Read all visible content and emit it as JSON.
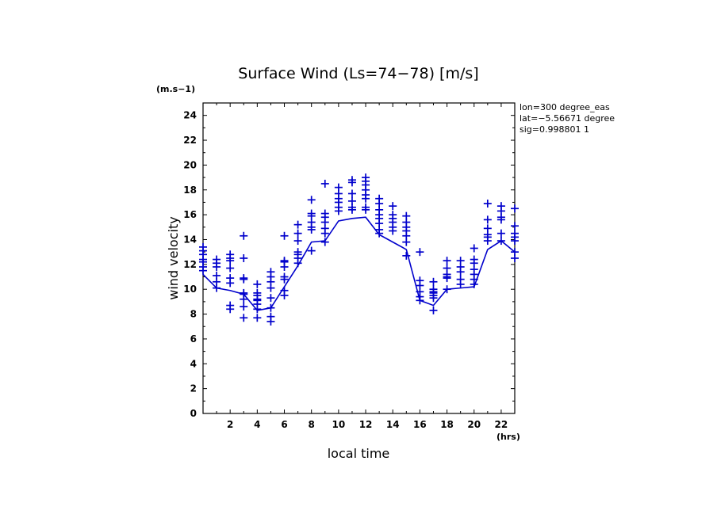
{
  "chart_data": {
    "type": "scatter",
    "title": "Surface Wind  (Ls=74−78) [m/s]",
    "y_unit_label": "(m.s−1)",
    "x_unit_label": "(hrs)",
    "xlabel": "local time",
    "ylabel": "wind velocity",
    "xlim": [
      0,
      23
    ],
    "ylim": [
      0,
      25
    ],
    "x_ticks": [
      2,
      4,
      6,
      8,
      10,
      12,
      14,
      16,
      18,
      20,
      22
    ],
    "y_ticks": [
      0,
      2,
      4,
      6,
      8,
      10,
      12,
      14,
      16,
      18,
      20,
      22,
      24
    ],
    "info_lines": [
      "lon=300 degree_eas",
      "lat=−5.56671 degree",
      "sig=0.998801 1"
    ],
    "color": "#0000cc",
    "series": [
      {
        "kind": "line",
        "x": [
          0,
          1,
          2,
          3,
          4,
          5,
          6,
          7,
          8,
          9,
          10,
          11,
          12,
          13,
          14,
          15,
          16,
          17,
          18,
          19,
          20,
          21,
          22,
          23
        ],
        "y": [
          11.2,
          10.1,
          9.9,
          9.6,
          8.3,
          8.5,
          10.2,
          11.9,
          13.8,
          13.9,
          15.5,
          15.7,
          15.8,
          14.4,
          13.8,
          13.2,
          9.1,
          8.7,
          10.0,
          10.1,
          10.2,
          13.2,
          13.9,
          13.0
        ]
      },
      {
        "kind": "points",
        "points": [
          [
            0,
            11.5
          ],
          [
            0,
            11.8
          ],
          [
            0,
            12.2
          ],
          [
            0,
            12.4
          ],
          [
            0,
            12.8
          ],
          [
            0,
            13.1
          ],
          [
            0,
            13.4
          ],
          [
            1,
            10.1
          ],
          [
            1,
            10.6
          ],
          [
            1,
            11.1
          ],
          [
            1,
            11.8
          ],
          [
            1,
            12.1
          ],
          [
            1,
            12.4
          ],
          [
            2,
            8.4
          ],
          [
            2,
            8.7
          ],
          [
            2,
            10.5
          ],
          [
            2,
            10.9
          ],
          [
            2,
            11.7
          ],
          [
            2,
            12.3
          ],
          [
            2,
            12.5
          ],
          [
            2,
            12.8
          ],
          [
            3,
            7.7
          ],
          [
            3,
            8.6
          ],
          [
            3,
            9.2
          ],
          [
            3,
            9.6
          ],
          [
            3,
            9.7
          ],
          [
            3,
            10.8
          ],
          [
            3,
            10.9
          ],
          [
            3,
            12.5
          ],
          [
            3,
            14.3
          ],
          [
            4,
            7.7
          ],
          [
            4,
            8.4
          ],
          [
            4,
            8.8
          ],
          [
            4,
            9.1
          ],
          [
            4,
            9.2
          ],
          [
            4,
            9.5
          ],
          [
            4,
            9.7
          ],
          [
            4,
            10.4
          ],
          [
            5,
            7.4
          ],
          [
            5,
            7.8
          ],
          [
            5,
            8.5
          ],
          [
            5,
            9.3
          ],
          [
            5,
            10.1
          ],
          [
            5,
            10.6
          ],
          [
            5,
            11.0
          ],
          [
            5,
            11.4
          ],
          [
            6,
            9.5
          ],
          [
            6,
            9.9
          ],
          [
            6,
            10.8
          ],
          [
            6,
            11.0
          ],
          [
            6,
            11.8
          ],
          [
            6,
            12.2
          ],
          [
            6,
            12.3
          ],
          [
            6,
            14.3
          ],
          [
            7,
            12.1
          ],
          [
            7,
            12.5
          ],
          [
            7,
            12.8
          ],
          [
            7,
            13.0
          ],
          [
            7,
            13.9
          ],
          [
            7,
            14.5
          ],
          [
            7,
            15.2
          ],
          [
            8,
            13.1
          ],
          [
            8,
            14.8
          ],
          [
            8,
            15.0
          ],
          [
            8,
            15.4
          ],
          [
            8,
            15.9
          ],
          [
            8,
            16.1
          ],
          [
            8,
            17.2
          ],
          [
            9,
            13.8
          ],
          [
            9,
            14.5
          ],
          [
            9,
            14.9
          ],
          [
            9,
            15.4
          ],
          [
            9,
            15.8
          ],
          [
            9,
            16.1
          ],
          [
            9,
            18.5
          ],
          [
            10,
            16.3
          ],
          [
            10,
            16.6
          ],
          [
            10,
            17.0
          ],
          [
            10,
            17.3
          ],
          [
            10,
            17.7
          ],
          [
            10,
            18.2
          ],
          [
            11,
            16.4
          ],
          [
            11,
            16.6
          ],
          [
            11,
            17.1
          ],
          [
            11,
            17.7
          ],
          [
            11,
            18.6
          ],
          [
            11,
            18.8
          ],
          [
            12,
            16.4
          ],
          [
            12,
            16.6
          ],
          [
            12,
            17.3
          ],
          [
            12,
            17.6
          ],
          [
            12,
            18.0
          ],
          [
            12,
            18.4
          ],
          [
            12,
            18.7
          ],
          [
            12,
            19.0
          ],
          [
            13,
            14.5
          ],
          [
            13,
            14.8
          ],
          [
            13,
            15.3
          ],
          [
            13,
            15.7
          ],
          [
            13,
            16.0
          ],
          [
            13,
            16.4
          ],
          [
            13,
            16.9
          ],
          [
            13,
            17.3
          ],
          [
            14,
            14.7
          ],
          [
            14,
            15.0
          ],
          [
            14,
            15.4
          ],
          [
            14,
            15.7
          ],
          [
            14,
            16.0
          ],
          [
            14,
            16.7
          ],
          [
            15,
            12.7
          ],
          [
            15,
            13.8
          ],
          [
            15,
            14.3
          ],
          [
            15,
            14.7
          ],
          [
            15,
            15.0
          ],
          [
            15,
            15.4
          ],
          [
            15,
            15.9
          ],
          [
            16,
            9.1
          ],
          [
            16,
            9.4
          ],
          [
            16,
            9.8
          ],
          [
            16,
            10.3
          ],
          [
            16,
            10.7
          ],
          [
            16,
            13.0
          ],
          [
            17,
            8.3
          ],
          [
            17,
            9.3
          ],
          [
            17,
            9.5
          ],
          [
            17,
            9.7
          ],
          [
            17,
            9.8
          ],
          [
            17,
            10.0
          ],
          [
            17,
            10.6
          ],
          [
            18,
            10.0
          ],
          [
            18,
            10.9
          ],
          [
            18,
            11.0
          ],
          [
            18,
            11.2
          ],
          [
            18,
            11.7
          ],
          [
            18,
            12.3
          ],
          [
            19,
            10.4
          ],
          [
            19,
            10.8
          ],
          [
            19,
            11.4
          ],
          [
            19,
            11.8
          ],
          [
            19,
            12.3
          ],
          [
            20,
            10.4
          ],
          [
            20,
            10.8
          ],
          [
            20,
            11.2
          ],
          [
            20,
            11.6
          ],
          [
            20,
            12.1
          ],
          [
            20,
            12.4
          ],
          [
            20,
            13.3
          ],
          [
            21,
            13.9
          ],
          [
            21,
            14.2
          ],
          [
            21,
            14.4
          ],
          [
            21,
            14.9
          ],
          [
            21,
            15.6
          ],
          [
            21,
            16.9
          ],
          [
            22,
            13.9
          ],
          [
            22,
            14.5
          ],
          [
            22,
            15.6
          ],
          [
            22,
            15.8
          ],
          [
            22,
            16.3
          ],
          [
            22,
            16.7
          ],
          [
            23,
            12.5
          ],
          [
            23,
            13.0
          ],
          [
            23,
            13.9
          ],
          [
            23,
            14.2
          ],
          [
            23,
            14.5
          ],
          [
            23,
            15.1
          ],
          [
            23,
            16.5
          ]
        ]
      }
    ]
  }
}
